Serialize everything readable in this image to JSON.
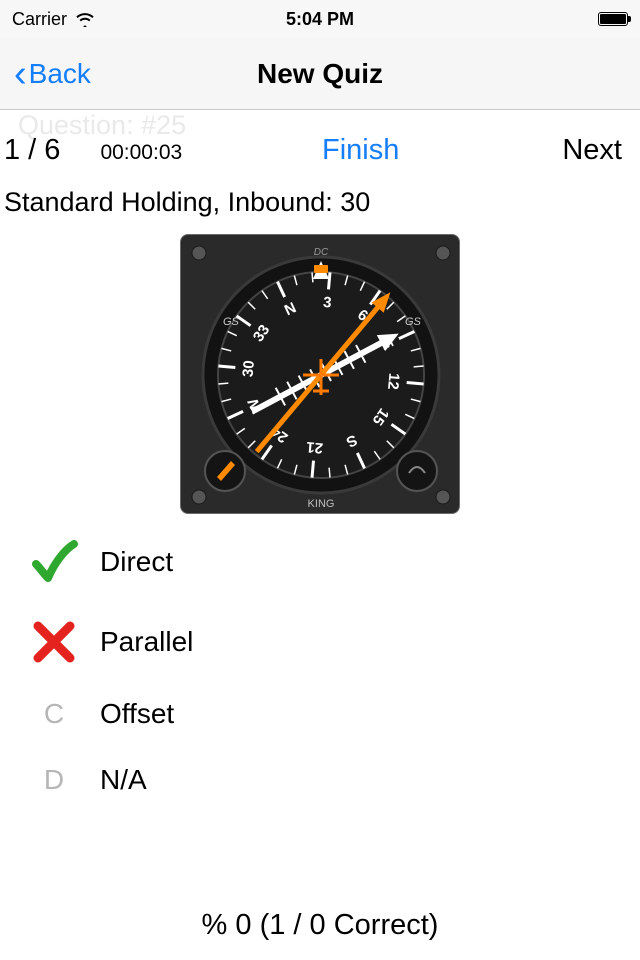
{
  "status": {
    "carrier": "Carrier",
    "time": "5:04 PM"
  },
  "nav": {
    "back": "Back",
    "title": "New Quiz"
  },
  "ghost": "Question: #25",
  "subbar": {
    "counter": "1 / 6",
    "timer": "00:00:03",
    "finish": "Finish",
    "next": "Next"
  },
  "question": "Standard Holding, Inbound: 30",
  "gauge": {
    "brand_top": "DC",
    "brand_bottom": "KING",
    "cardinals": [
      "N",
      "3",
      "6",
      "E",
      "12",
      "15",
      "S",
      "21",
      "24",
      "W",
      "30",
      "33"
    ],
    "bezel_color": "#2a2a2a",
    "face_color": "#1b1b1b",
    "tick_color": "#ffffff",
    "needle_color": "#ff8a00",
    "pointer_color": "#ffffff",
    "cdi_color": "#ffffff"
  },
  "answers": {
    "a": {
      "text": "Direct",
      "status": "correct"
    },
    "b": {
      "text": "Parallel",
      "status": "wrong"
    },
    "c": {
      "text": "Offset",
      "letter": "C"
    },
    "d": {
      "text": "N/A",
      "letter": "D"
    }
  },
  "score": "% 0 (1 / 0 Correct)"
}
